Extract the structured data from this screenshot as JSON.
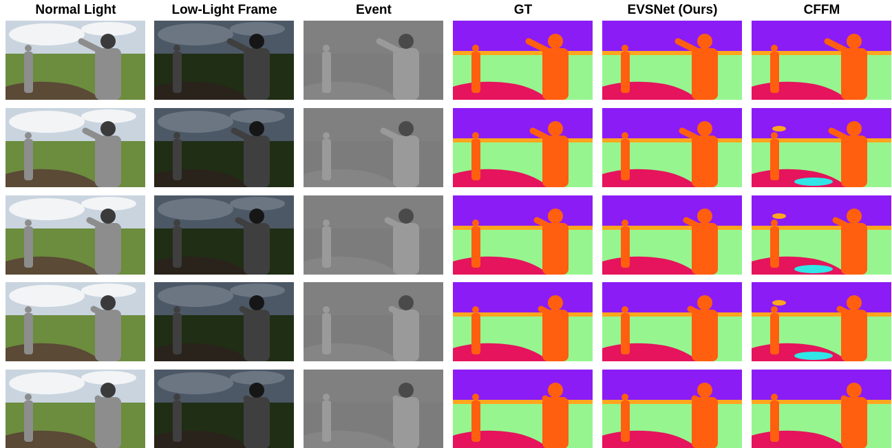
{
  "columns": [
    "Normal Light",
    "Low-Light Frame",
    "Event",
    "GT",
    "EVSNet (Ours)",
    "CFFM"
  ]
}
